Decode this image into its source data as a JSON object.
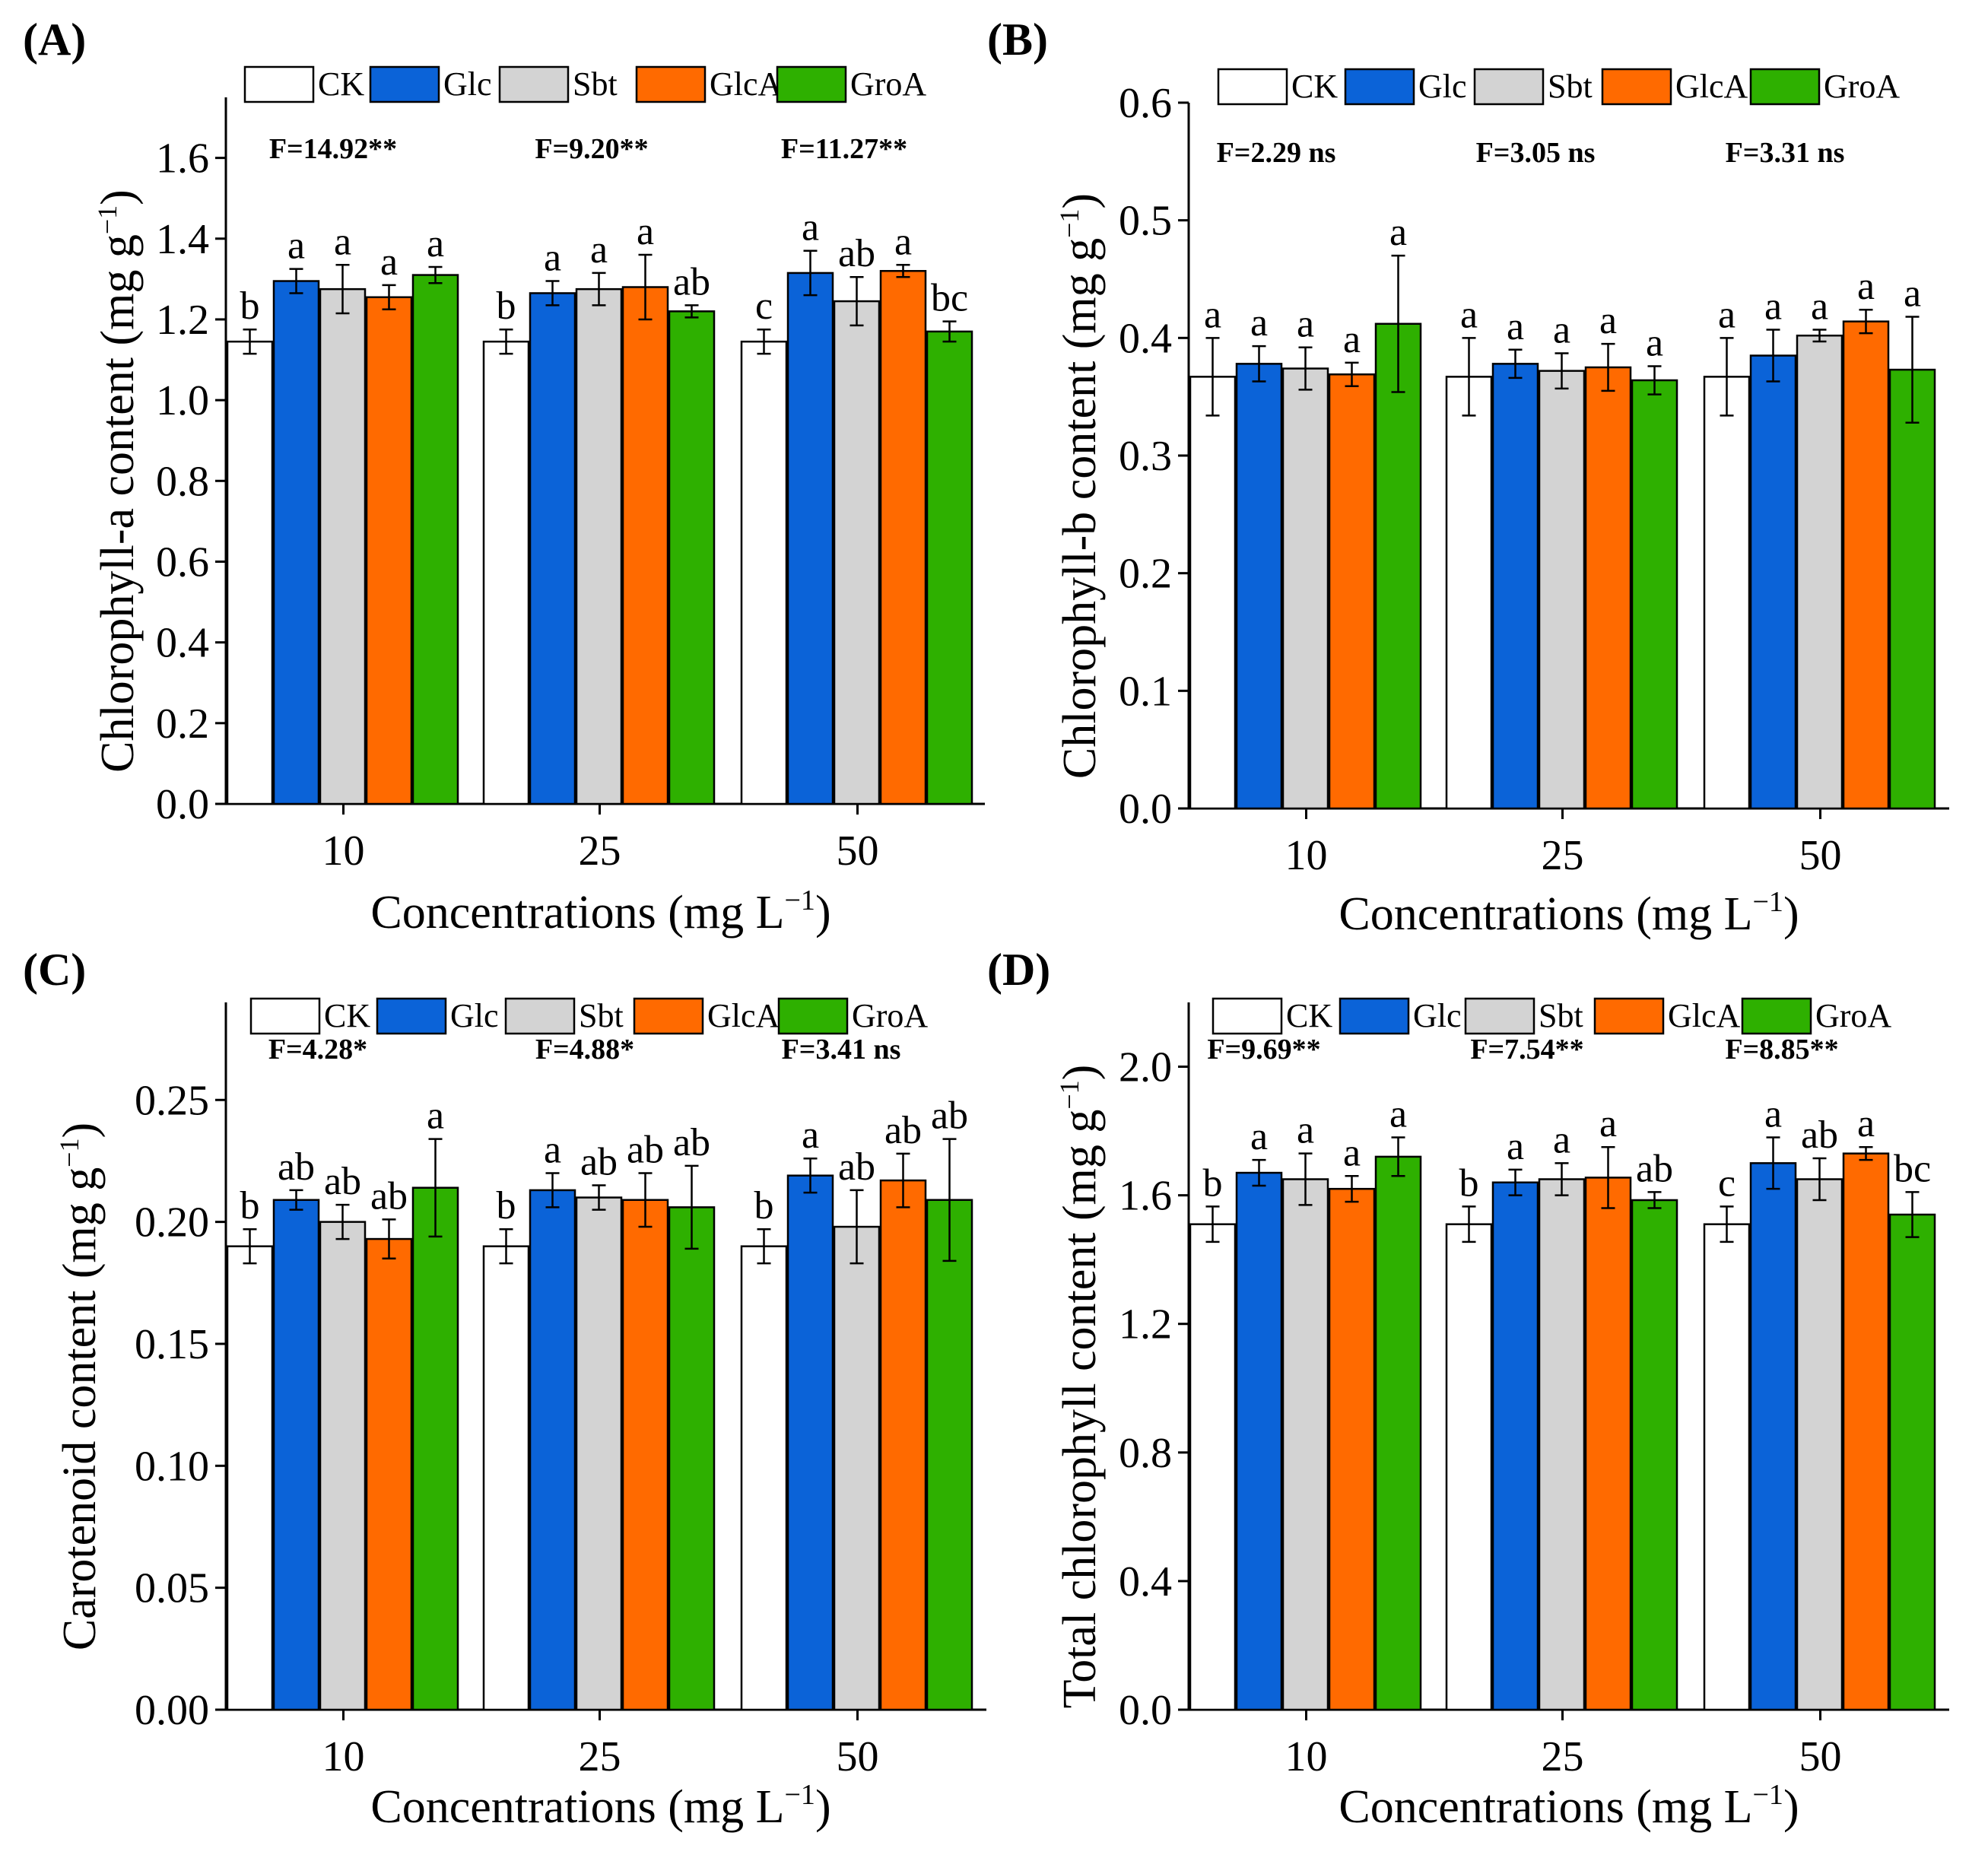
{
  "chart_data": [
    {
      "type": "bar",
      "panel": "(A)",
      "ylabel": "Chlorophyll-a content (mg g",
      "ylabel_sup": "−1",
      "xlabel": "Concentrations (mg L",
      "xlabel_sup": "−1",
      "categories": [
        "10",
        "25",
        "50"
      ],
      "ylim": [
        0,
        1.75
      ],
      "yticks": [
        "0.0",
        "0.2",
        "0.4",
        "0.6",
        "0.8",
        "1.0",
        "1.2",
        "1.4",
        "1.6"
      ],
      "legend": [
        "CK",
        "Glc",
        "Sbt",
        "GlcA",
        "GroA"
      ],
      "stats": [
        "F=14.92**",
        "F=9.20**",
        "F=11.27**"
      ],
      "series": [
        {
          "name": "CK",
          "color": "#ffffff",
          "values": [
            1.145,
            1.145,
            1.145
          ],
          "errors": [
            0.03,
            0.03,
            0.03
          ],
          "letters": [
            "b",
            "b",
            "c"
          ]
        },
        {
          "name": "Glc",
          "color": "#0b63d8",
          "values": [
            1.295,
            1.265,
            1.315
          ],
          "errors": [
            0.03,
            0.03,
            0.055
          ],
          "letters": [
            "a",
            "a",
            "a"
          ]
        },
        {
          "name": "Sbt",
          "color": "#d3d3d3",
          "values": [
            1.275,
            1.275,
            1.245
          ],
          "errors": [
            0.06,
            0.04,
            0.06
          ],
          "letters": [
            "a",
            "a",
            "ab"
          ]
        },
        {
          "name": "GlcA",
          "color": "#ff6a00",
          "values": [
            1.255,
            1.28,
            1.32
          ],
          "errors": [
            0.03,
            0.08,
            0.015
          ],
          "letters": [
            "a",
            "a",
            "a"
          ]
        },
        {
          "name": "GroA",
          "color": "#2eb000",
          "values": [
            1.31,
            1.22,
            1.17
          ],
          "errors": [
            0.02,
            0.015,
            0.025
          ],
          "letters": [
            "a",
            "ab",
            "bc"
          ]
        }
      ]
    },
    {
      "type": "bar",
      "panel": "(B)",
      "ylabel": "Chlorophyll-b content (mg g",
      "ylabel_sup": "−1",
      "xlabel": "Concentrations (mg L",
      "xlabel_sup": "−1",
      "categories": [
        "10",
        "25",
        "50"
      ],
      "ylim": [
        0,
        0.6
      ],
      "yticks": [
        "0.0",
        "0.1",
        "0.2",
        "0.3",
        "0.4",
        "0.5",
        "0.6"
      ],
      "legend": [
        "CK",
        "Glc",
        "Sbt",
        "GlcA",
        "GroA"
      ],
      "stats": [
        "F=2.29 ns",
        "F=3.05 ns",
        "F=3.31 ns"
      ],
      "series": [
        {
          "name": "CK",
          "color": "#ffffff",
          "values": [
            0.367,
            0.367,
            0.367
          ],
          "errors": [
            0.033,
            0.033,
            0.033
          ],
          "letters": [
            "a",
            "a",
            "a"
          ]
        },
        {
          "name": "Glc",
          "color": "#0b63d8",
          "values": [
            0.378,
            0.378,
            0.385
          ],
          "errors": [
            0.015,
            0.012,
            0.022
          ],
          "letters": [
            "a",
            "a",
            "a"
          ]
        },
        {
          "name": "Sbt",
          "color": "#d3d3d3",
          "values": [
            0.374,
            0.372,
            0.402
          ],
          "errors": [
            0.018,
            0.015,
            0.005
          ],
          "letters": [
            "a",
            "a",
            "a"
          ]
        },
        {
          "name": "GlcA",
          "color": "#ff6a00",
          "values": [
            0.369,
            0.375,
            0.414
          ],
          "errors": [
            0.01,
            0.02,
            0.01
          ],
          "letters": [
            "a",
            "a",
            "a"
          ]
        },
        {
          "name": "GroA",
          "color": "#2eb000",
          "values": [
            0.412,
            0.364,
            0.373
          ],
          "errors": [
            0.058,
            0.012,
            0.045
          ],
          "letters": [
            "a",
            "a",
            "a"
          ]
        }
      ]
    },
    {
      "type": "bar",
      "panel": "(C)",
      "ylabel": "Carotenoid content (mg g",
      "ylabel_sup": "−1",
      "xlabel": "Concentrations (mg L",
      "xlabel_sup": "−1",
      "categories": [
        "10",
        "25",
        "50"
      ],
      "ylim": [
        0,
        0.29
      ],
      "yticks": [
        "0.00",
        "0.05",
        "0.10",
        "0.15",
        "0.20",
        "0.25"
      ],
      "legend": [
        "CK",
        "Glc",
        "Sbt",
        "GlcA",
        "GroA"
      ],
      "stats": [
        "F=4.28*",
        "F=4.88*",
        "F=3.41 ns"
      ],
      "series": [
        {
          "name": "CK",
          "color": "#ffffff",
          "values": [
            0.19,
            0.19,
            0.19
          ],
          "errors": [
            0.007,
            0.007,
            0.007
          ],
          "letters": [
            "b",
            "b",
            "b"
          ]
        },
        {
          "name": "Glc",
          "color": "#0b63d8",
          "values": [
            0.209,
            0.213,
            0.219
          ],
          "errors": [
            0.004,
            0.007,
            0.007
          ],
          "letters": [
            "ab",
            "a",
            "a"
          ]
        },
        {
          "name": "Sbt",
          "color": "#d3d3d3",
          "values": [
            0.2,
            0.21,
            0.198
          ],
          "errors": [
            0.007,
            0.005,
            0.015
          ],
          "letters": [
            "ab",
            "ab",
            "ab"
          ]
        },
        {
          "name": "GlcA",
          "color": "#ff6a00",
          "values": [
            0.193,
            0.209,
            0.217
          ],
          "errors": [
            0.008,
            0.011,
            0.011
          ],
          "letters": [
            "ab",
            "ab",
            "ab"
          ]
        },
        {
          "name": "GroA",
          "color": "#2eb000",
          "values": [
            0.214,
            0.206,
            0.209
          ],
          "errors": [
            0.02,
            0.017,
            0.025
          ],
          "letters": [
            "a",
            "ab",
            "ab"
          ]
        }
      ]
    },
    {
      "type": "bar",
      "panel": "(D)",
      "ylabel": "Total chlorophyll content (mg g",
      "ylabel_sup": "−1",
      "xlabel": "Concentrations (mg L",
      "xlabel_sup": "−1",
      "categories": [
        "10",
        "25",
        "50"
      ],
      "ylim": [
        0,
        2.2
      ],
      "yticks": [
        "0.0",
        "0.4",
        "0.8",
        "1.2",
        "1.6",
        "2.0"
      ],
      "legend": [
        "CK",
        "Glc",
        "Sbt",
        "GlcA",
        "GroA"
      ],
      "stats": [
        "F=9.69**",
        "F=7.54**",
        "F=8.85**"
      ],
      "series": [
        {
          "name": "CK",
          "color": "#ffffff",
          "values": [
            1.51,
            1.51,
            1.51
          ],
          "errors": [
            0.055,
            0.055,
            0.055
          ],
          "letters": [
            "b",
            "b",
            "c"
          ]
        },
        {
          "name": "Glc",
          "color": "#0b63d8",
          "values": [
            1.67,
            1.64,
            1.7
          ],
          "errors": [
            0.04,
            0.04,
            0.08
          ],
          "letters": [
            "a",
            "a",
            "a"
          ]
        },
        {
          "name": "Sbt",
          "color": "#d3d3d3",
          "values": [
            1.65,
            1.65,
            1.65
          ],
          "errors": [
            0.08,
            0.05,
            0.065
          ],
          "letters": [
            "a",
            "a",
            "ab"
          ]
        },
        {
          "name": "GlcA",
          "color": "#ff6a00",
          "values": [
            1.62,
            1.655,
            1.73
          ],
          "errors": [
            0.04,
            0.095,
            0.02
          ],
          "letters": [
            "a",
            "a",
            "a"
          ]
        },
        {
          "name": "GroA",
          "color": "#2eb000",
          "values": [
            1.72,
            1.585,
            1.54
          ],
          "errors": [
            0.06,
            0.025,
            0.07
          ],
          "letters": [
            "a",
            "ab",
            "bc"
          ]
        }
      ]
    }
  ]
}
